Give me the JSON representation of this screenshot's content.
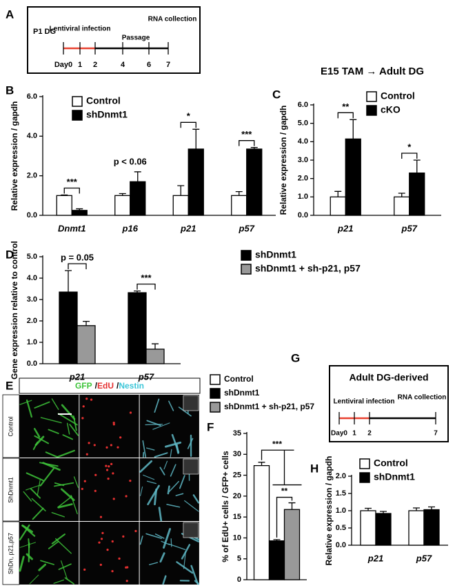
{
  "figure": {
    "panel_a": {
      "letter": "A",
      "start": "P1 DG",
      "events": [
        "Lentiviral infection",
        "Passage",
        "RNA collection"
      ],
      "days": [
        "Day0",
        "1",
        "2",
        "4",
        "6",
        "7"
      ]
    },
    "panel_e": {
      "letter": "E",
      "channels": [
        "GFP",
        "EdU",
        "Nestin"
      ],
      "separator": "/",
      "rows": [
        "Control",
        "ShDnmt1",
        "ShDn, p21,p57"
      ]
    },
    "panel_g": {
      "letter": "G",
      "title": "Adult DG-derived",
      "events": [
        "Lentiviral infection",
        "RNA collection"
      ],
      "days": [
        "Day0",
        "1",
        "2",
        "7"
      ]
    }
  },
  "chart_data": [
    {
      "type": "bar",
      "panel": "B",
      "y_label": "Relative expression / gapdh",
      "categories": [
        "Dnmt1",
        "p16",
        "p21",
        "p57"
      ],
      "series": [
        {
          "name": "Control",
          "color": "#ffffff",
          "values": [
            1.0,
            1.0,
            1.0,
            1.0
          ],
          "errors": [
            0.03,
            0.1,
            0.5,
            0.2
          ]
        },
        {
          "name": "shDnmt1",
          "color": "#000000",
          "values": [
            0.25,
            1.7,
            3.35,
            3.35
          ],
          "errors": [
            0.08,
            0.5,
            1.0,
            0.08
          ]
        }
      ],
      "ylim": [
        0,
        6
      ],
      "yticks": [
        {
          "value": 0,
          "label": "0.0"
        },
        {
          "value": 2,
          "label": "2.0"
        },
        {
          "value": 4,
          "label": "4.0"
        },
        {
          "value": 6,
          "label": "6.0"
        }
      ],
      "annotations": [
        "***",
        "p < 0.06",
        "*",
        "***"
      ],
      "brackets": [
        true,
        false,
        true,
        true
      ]
    },
    {
      "type": "bar",
      "panel": "C",
      "title": "E15 TAM → Adult DG",
      "y_label": "Relative expression / gapdh",
      "categories": [
        "p21",
        "p57"
      ],
      "series": [
        {
          "name": "Control",
          "color": "#ffffff",
          "values": [
            1.0,
            1.0
          ],
          "errors": [
            0.3,
            0.2
          ]
        },
        {
          "name": "cKO",
          "color": "#000000",
          "values": [
            4.15,
            2.3
          ],
          "errors": [
            1.05,
            0.7
          ]
        }
      ],
      "ylim": [
        0,
        6
      ],
      "yticks": [
        {
          "value": 0,
          "label": "0.0"
        },
        {
          "value": 1,
          "label": "1.0"
        },
        {
          "value": 2,
          "label": "2.0"
        },
        {
          "value": 3,
          "label": "3.0"
        },
        {
          "value": 4,
          "label": "4.0"
        },
        {
          "value": 5,
          "label": "5.0"
        },
        {
          "value": 6,
          "label": "6.0"
        }
      ],
      "annotations": [
        "**",
        "*"
      ],
      "brackets": [
        true,
        true
      ]
    },
    {
      "type": "bar",
      "panel": "D",
      "y_label": "Gene expression relative to control",
      "categories": [
        "p21",
        "p57"
      ],
      "series": [
        {
          "name": "shDnmt1",
          "color": "#000000",
          "values": [
            3.35,
            3.32
          ],
          "errors": [
            1.0,
            0.08
          ]
        },
        {
          "name": "shDnmt1 + sh-p21, p57",
          "color": "#999999",
          "values": [
            1.78,
            0.68
          ],
          "errors": [
            0.2,
            0.25
          ]
        }
      ],
      "ylim": [
        0,
        5
      ],
      "yticks": [
        {
          "value": 0,
          "label": "0.0"
        },
        {
          "value": 1,
          "label": "1.0"
        },
        {
          "value": 2,
          "label": "2.0"
        },
        {
          "value": 3,
          "label": "3.0"
        },
        {
          "value": 4,
          "label": "4.0"
        },
        {
          "value": 5,
          "label": "5.0"
        }
      ],
      "annotations": [
        "p = 0.05",
        "***"
      ],
      "brackets": [
        true,
        true
      ]
    },
    {
      "type": "bar",
      "panel": "F",
      "y_label": "% of EdU+ cells / GFP+ cells",
      "categories": [
        null
      ],
      "series": [
        {
          "name": "Control",
          "color": "#ffffff",
          "values": [
            27.3
          ],
          "errors": [
            0.8
          ]
        },
        {
          "name": "shDnmt1",
          "color": "#000000",
          "values": [
            9.3
          ],
          "errors": [
            0.3
          ]
        },
        {
          "name": "shDnmt1 + sh-p21, p57",
          "color": "#999999",
          "values": [
            16.8
          ],
          "errors": [
            1.6
          ]
        }
      ],
      "ylim": [
        0,
        35
      ],
      "yticks": [
        0,
        5,
        10,
        15,
        20,
        25,
        30,
        35
      ],
      "annotations": [
        "***",
        "**"
      ]
    },
    {
      "type": "bar",
      "panel": "H",
      "y_label": "Relative expression / gapdh",
      "categories": [
        "p21",
        "p57"
      ],
      "series": [
        {
          "name": "Control",
          "color": "#ffffff",
          "values": [
            1.0,
            1.0
          ],
          "errors": [
            0.07,
            0.08
          ]
        },
        {
          "name": "shDnmt1",
          "color": "#000000",
          "values": [
            0.92,
            1.03
          ],
          "errors": [
            0.06,
            0.08
          ]
        }
      ],
      "ylim": [
        0,
        2
      ],
      "yticks": [
        {
          "value": 0,
          "label": "0.0"
        },
        {
          "value": 0.5,
          "label": "0.5"
        },
        {
          "value": 1,
          "label": "1.0"
        },
        {
          "value": 1.5,
          "label": "1.5"
        },
        {
          "value": 2,
          "label": "2.0"
        }
      ],
      "annotations": []
    }
  ]
}
